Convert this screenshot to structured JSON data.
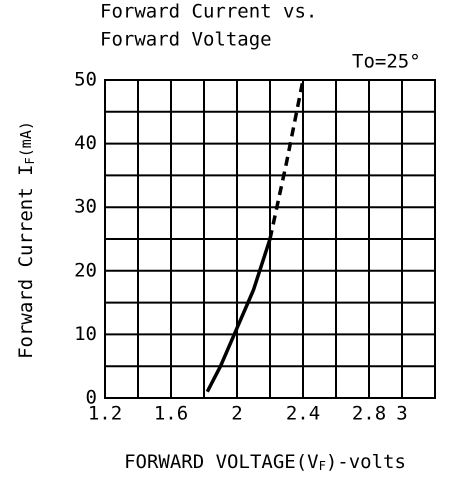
{
  "chart_data": {
    "type": "line",
    "title_lines": [
      "Forward Current vs.",
      "Forward Voltage"
    ],
    "annotation": "To=25°",
    "ylabel": {
      "main": "Forward Current I",
      "sub": "F",
      "unit": "(mA)"
    },
    "xlabel": {
      "main": "FORWARD VOLTAGE(V",
      "sub": "F",
      "unit": ")-volts"
    },
    "xlim": [
      1.2,
      3.2
    ],
    "xticks": [
      1.2,
      1.6,
      2.0,
      2.4,
      2.8,
      3.0
    ],
    "minor_xticks": [
      1.4,
      1.8,
      2.2,
      2.6,
      3.2
    ],
    "ylim": [
      0,
      50
    ],
    "yticks": [
      0,
      10,
      20,
      30,
      40,
      50
    ],
    "minor_yticks": [
      5,
      15,
      25,
      35,
      45
    ],
    "grid": true,
    "color": "#000000",
    "series": [
      {
        "style": "solid",
        "x": [
          1.82,
          1.9,
          2.0,
          2.1,
          2.2
        ],
        "values": [
          1,
          5,
          11,
          17,
          25
        ]
      },
      {
        "style": "dashed",
        "x": [
          2.2,
          2.3,
          2.4
        ],
        "values": [
          25,
          37,
          50
        ]
      }
    ]
  }
}
